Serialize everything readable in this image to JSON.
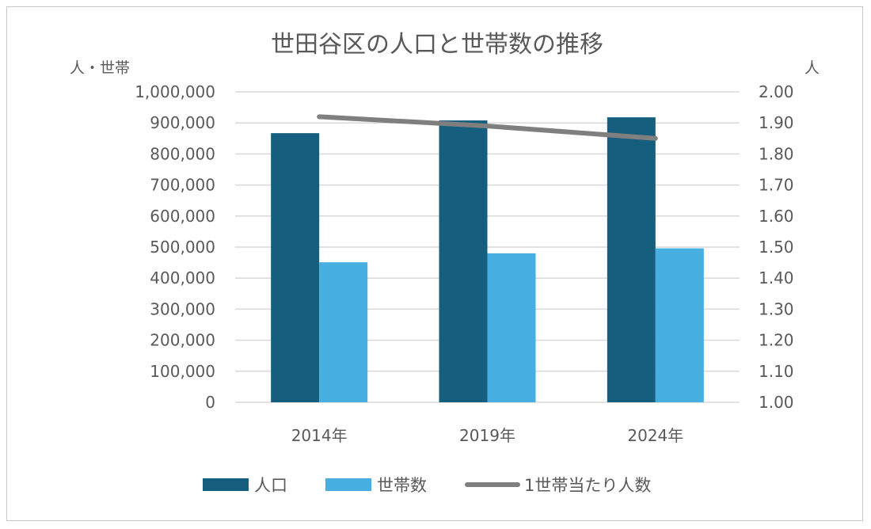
{
  "chart_data": {
    "type": "bar",
    "title": "世田谷区の人口と世帯数の推移",
    "y_left_unit": "人・世帯",
    "y_right_unit": "人",
    "categories": [
      "2014年",
      "2019年",
      "2024年"
    ],
    "y_left_range": [
      0,
      1000000
    ],
    "y_left_ticks": [
      "0",
      "100,000",
      "200,000",
      "300,000",
      "400,000",
      "500,000",
      "600,000",
      "700,000",
      "800,000",
      "900,000",
      "1,000,000"
    ],
    "y_right_range": [
      1.0,
      2.0
    ],
    "y_right_ticks": [
      "1.00",
      "1.10",
      "1.20",
      "1.30",
      "1.40",
      "1.50",
      "1.60",
      "1.70",
      "1.80",
      "1.90",
      "2.00"
    ],
    "series": [
      {
        "name": "人口",
        "type": "bar",
        "axis": "left",
        "color": "#165E7E",
        "values": [
          867000,
          908000,
          918000
        ]
      },
      {
        "name": "世帯数",
        "type": "bar",
        "axis": "left",
        "color": "#47AEE0",
        "values": [
          451000,
          480000,
          496000
        ]
      },
      {
        "name": "1世帯当たり人数",
        "type": "line",
        "axis": "right",
        "color": "#7F7F7F",
        "values": [
          1.92,
          1.89,
          1.85
        ]
      }
    ],
    "grid": true,
    "legend_position": "bottom"
  }
}
